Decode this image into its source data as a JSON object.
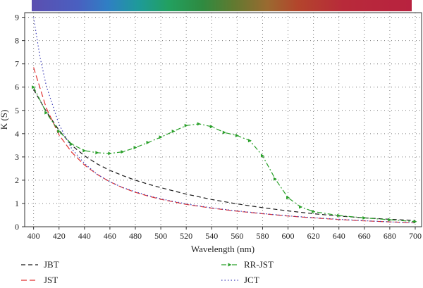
{
  "chart_data": {
    "type": "line",
    "title": "",
    "xlabel": "Wavelength (nm)",
    "ylabel": "K (S)",
    "xlim": [
      393,
      705
    ],
    "ylim": [
      0,
      9.2
    ],
    "xticks": [
      400,
      420,
      440,
      460,
      480,
      500,
      520,
      540,
      560,
      580,
      600,
      620,
      640,
      660,
      680,
      700
    ],
    "yticks": [
      0,
      1,
      2,
      3,
      4,
      5,
      6,
      7,
      8,
      9
    ],
    "grid": true,
    "legend_position": "bottom",
    "spectrum_bar": true,
    "series": [
      {
        "name": "JBT",
        "color": "#1a1a1a",
        "dash": "dashed",
        "x": [
          400,
          410,
          420,
          430,
          440,
          450,
          460,
          470,
          480,
          490,
          500,
          520,
          540,
          560,
          580,
          600,
          620,
          640,
          660,
          680,
          700
        ],
        "y": [
          5.9,
          4.95,
          4.15,
          3.5,
          3.05,
          2.7,
          2.42,
          2.2,
          2.0,
          1.83,
          1.68,
          1.4,
          1.17,
          0.98,
          0.82,
          0.68,
          0.56,
          0.46,
          0.38,
          0.32,
          0.27
        ]
      },
      {
        "name": "JST",
        "color": "#e03030",
        "dash": "longdash",
        "x": [
          400,
          410,
          420,
          430,
          440,
          450,
          460,
          470,
          480,
          490,
          500,
          520,
          540,
          560,
          580,
          600,
          620,
          640,
          660,
          680,
          700
        ],
        "y": [
          6.85,
          5.1,
          3.95,
          3.2,
          2.65,
          2.25,
          1.93,
          1.68,
          1.48,
          1.32,
          1.18,
          0.96,
          0.8,
          0.67,
          0.56,
          0.46,
          0.38,
          0.31,
          0.25,
          0.21,
          0.17
        ]
      },
      {
        "name": "RR-JST",
        "color": "#2aa02a",
        "dash": "dashdot",
        "marker": "arrow",
        "x": [
          400,
          410,
          420,
          430,
          440,
          450,
          460,
          470,
          480,
          490,
          500,
          510,
          520,
          530,
          540,
          550,
          560,
          570,
          580,
          590,
          600,
          610,
          620,
          640,
          660,
          680,
          700
        ],
        "y": [
          6.0,
          4.9,
          4.1,
          3.55,
          3.27,
          3.18,
          3.15,
          3.22,
          3.4,
          3.62,
          3.85,
          4.1,
          4.35,
          4.42,
          4.3,
          4.05,
          3.92,
          3.7,
          3.05,
          2.05,
          1.25,
          0.85,
          0.65,
          0.48,
          0.38,
          0.3,
          0.22
        ]
      },
      {
        "name": "JCT",
        "color": "#3f3fb8",
        "dash": "dotted",
        "x": [
          400,
          405,
          410,
          420,
          430,
          440,
          450,
          460,
          470,
          480,
          490,
          500,
          520,
          540,
          560,
          580,
          600,
          620,
          640,
          660,
          680,
          700
        ],
        "y": [
          9.0,
          7.3,
          6.05,
          4.4,
          3.35,
          2.72,
          2.25,
          1.93,
          1.69,
          1.5,
          1.34,
          1.2,
          0.98,
          0.81,
          0.68,
          0.57,
          0.47,
          0.39,
          0.32,
          0.26,
          0.21,
          0.17
        ]
      }
    ]
  }
}
